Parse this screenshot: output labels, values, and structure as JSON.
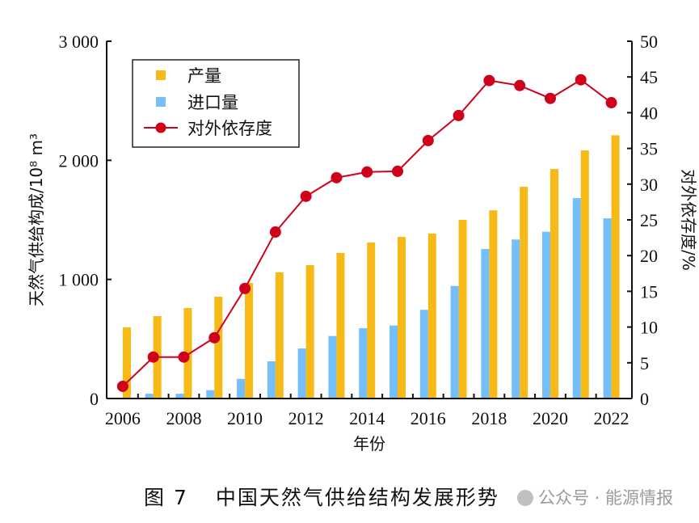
{
  "chart_data": {
    "type": "bar",
    "title": "",
    "xlabel": "年份",
    "ylabel": "天然气供给构成/10⁸ m³",
    "y2label": "对外依存度/%",
    "ylim": [
      0,
      3000
    ],
    "y2lim": [
      0,
      50
    ],
    "yticks": [
      0,
      1000,
      2000,
      3000
    ],
    "ytick_labels": [
      "0",
      "1 000",
      "2 000",
      "3 000"
    ],
    "y2ticks": [
      0,
      5,
      10,
      15,
      20,
      25,
      30,
      35,
      40,
      45,
      50
    ],
    "y2tick_labels": [
      "0",
      "5",
      "10",
      "15",
      "20",
      "25",
      "30",
      "35",
      "40",
      "45",
      "50"
    ],
    "categories": [
      "2006",
      "2007",
      "2008",
      "2009",
      "2010",
      "2011",
      "2012",
      "2013",
      "2014",
      "2015",
      "2016",
      "2017",
      "2018",
      "2019",
      "2020",
      "2021",
      "2022"
    ],
    "xtick_labels": [
      "2006",
      "2008",
      "2010",
      "2012",
      "2014",
      "2016",
      "2018",
      "2020",
      "2022"
    ],
    "grid": false,
    "legend_position": "top-left",
    "series": [
      {
        "name": "产量",
        "type": "bar",
        "axis": "left",
        "color": "#F7B916",
        "values": [
          597,
          692,
          760,
          855,
          970,
          1060,
          1120,
          1222,
          1310,
          1357,
          1385,
          1500,
          1580,
          1778,
          1927,
          2083,
          2210
        ]
      },
      {
        "name": "进口量",
        "type": "bar",
        "axis": "left",
        "color": "#74BFFA",
        "values": [
          5,
          40,
          40,
          70,
          165,
          312,
          420,
          525,
          590,
          613,
          745,
          945,
          1255,
          1335,
          1400,
          1683,
          1513
        ]
      },
      {
        "name": "对外依存度",
        "type": "line",
        "axis": "right",
        "color": "#D0021B",
        "values": [
          1.7,
          5.8,
          5.8,
          8.5,
          15.4,
          23.3,
          28.3,
          30.9,
          31.7,
          31.8,
          36.1,
          39.6,
          44.5,
          43.8,
          42.0,
          44.6,
          41.4
        ]
      }
    ]
  },
  "caption": {
    "figure_number": "图 7",
    "text": "中国天然气供给结构发展形势"
  },
  "watermark": "公众号 · 能源情报"
}
